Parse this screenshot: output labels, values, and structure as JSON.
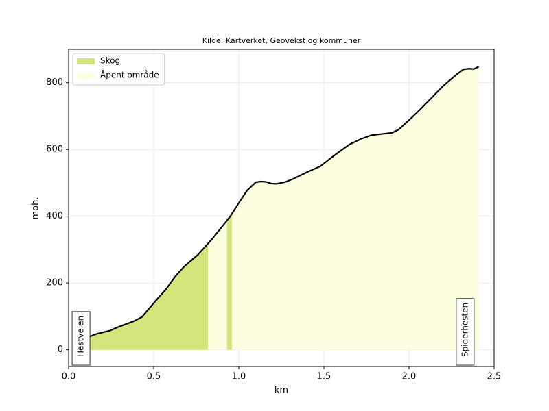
{
  "chart_data": {
    "type": "area",
    "title": "Kilde: Kartverket, Geovekst og kommuner",
    "x_label": "km",
    "y_label": "moh.",
    "x": [
      0.04,
      0.11,
      0.16,
      0.24,
      0.29,
      0.38,
      0.43,
      0.5,
      0.57,
      0.63,
      0.68,
      0.76,
      0.84,
      0.9,
      0.95,
      1.0,
      1.05,
      1.1,
      1.13,
      1.16,
      1.19,
      1.22,
      1.27,
      1.32,
      1.4,
      1.48,
      1.55,
      1.65,
      1.72,
      1.78,
      1.85,
      1.9,
      1.94,
      2.0,
      2.05,
      2.12,
      2.2,
      2.28,
      2.32,
      2.35,
      2.38,
      2.41
    ],
    "values": [
      28,
      37,
      47,
      57,
      68,
      85,
      98,
      140,
      180,
      222,
      250,
      285,
      330,
      368,
      400,
      440,
      478,
      502,
      504,
      503,
      498,
      497,
      502,
      512,
      532,
      550,
      578,
      615,
      632,
      643,
      647,
      650,
      660,
      688,
      712,
      748,
      790,
      825,
      840,
      842,
      841,
      848
    ],
    "line_color": "#000000",
    "areas": [
      {
        "name": "Skog",
        "color": "#d4e57c",
        "ranges": [
          [
            0.04,
            0.82
          ],
          [
            0.93,
            0.96
          ]
        ]
      },
      {
        "name": "Åpent område",
        "color": "#fdfde0",
        "ranges": [
          [
            0.82,
            0.93
          ],
          [
            0.96,
            2.41
          ]
        ]
      }
    ],
    "annotations": [
      {
        "text": "Hestveien",
        "x": 0.073
      },
      {
        "text": "Spiderhesten",
        "x": 2.33
      }
    ],
    "xlim": [
      0,
      2.5
    ],
    "xticks": [
      {
        "value": 0,
        "label": "0.0"
      },
      0.5,
      {
        "value": 1,
        "label": "1.0"
      },
      1.5,
      {
        "value": 2,
        "label": "2.0"
      },
      2.5
    ],
    "ylim": [
      -50,
      900
    ],
    "yticks": [
      0,
      200,
      400,
      600,
      800
    ],
    "grid": true,
    "legend": "upper-left"
  }
}
